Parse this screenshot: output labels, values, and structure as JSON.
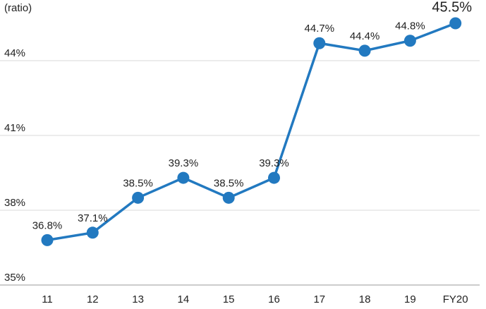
{
  "chart_data": {
    "type": "line",
    "y_axis_label": "(ratio)",
    "categories": [
      "11",
      "12",
      "13",
      "14",
      "15",
      "16",
      "17",
      "18",
      "19",
      "FY20"
    ],
    "series": [
      {
        "name": "ratio",
        "color": "#2279c0",
        "values": [
          36.8,
          37.1,
          38.5,
          39.3,
          38.5,
          39.3,
          44.7,
          44.4,
          44.8,
          45.5
        ],
        "value_labels": [
          "36.8%",
          "37.1%",
          "38.5%",
          "39.3%",
          "38.5%",
          "39.3%",
          "44.7%",
          "44.4%",
          "44.8%",
          "45.5%"
        ]
      }
    ],
    "ylim": [
      35,
      45.5
    ],
    "yticks": [
      {
        "value": 35,
        "label": "35%"
      },
      {
        "value": 38,
        "label": "38%"
      },
      {
        "value": 41,
        "label": "41%"
      },
      {
        "value": 44,
        "label": "44%"
      }
    ],
    "grid": true
  }
}
